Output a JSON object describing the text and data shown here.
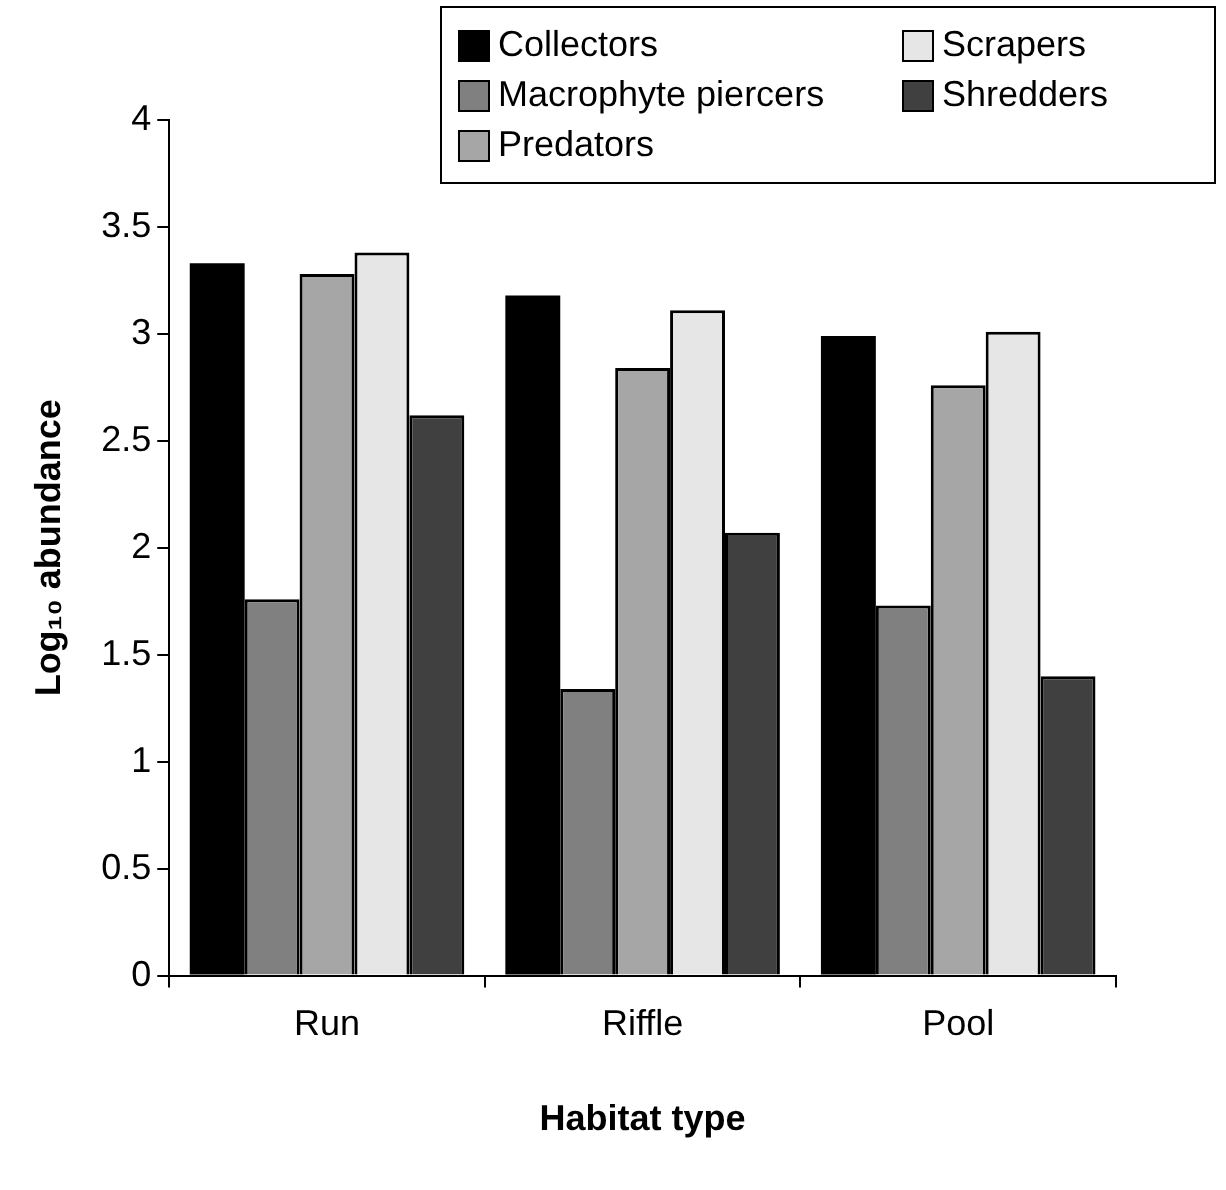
{
  "chart_data": {
    "type": "bar",
    "xlabel": "Habitat type",
    "ylabel": "Log₁₀ abundance",
    "categories": [
      "Run",
      "Riffle",
      "Pool"
    ],
    "series": [
      {
        "name": "Collectors",
        "color": "#000000",
        "values": [
          3.33,
          3.18,
          2.99
        ]
      },
      {
        "name": "Macrophyte piercers",
        "color": "#808080",
        "values": [
          1.76,
          1.34,
          1.73
        ]
      },
      {
        "name": "Predators",
        "color": "#a6a6a6",
        "values": [
          3.28,
          2.84,
          2.76
        ]
      },
      {
        "name": "Scrapers",
        "color": "#e6e6e6",
        "values": [
          3.38,
          3.11,
          3.01
        ]
      },
      {
        "name": "Shredders",
        "color": "#404040",
        "values": [
          2.62,
          2.07,
          1.4
        ]
      }
    ],
    "ylim": [
      0,
      4
    ],
    "yticks": [
      0,
      0.5,
      1,
      1.5,
      2,
      2.5,
      3,
      3.5,
      4
    ],
    "grid": false,
    "legend": "top right"
  }
}
